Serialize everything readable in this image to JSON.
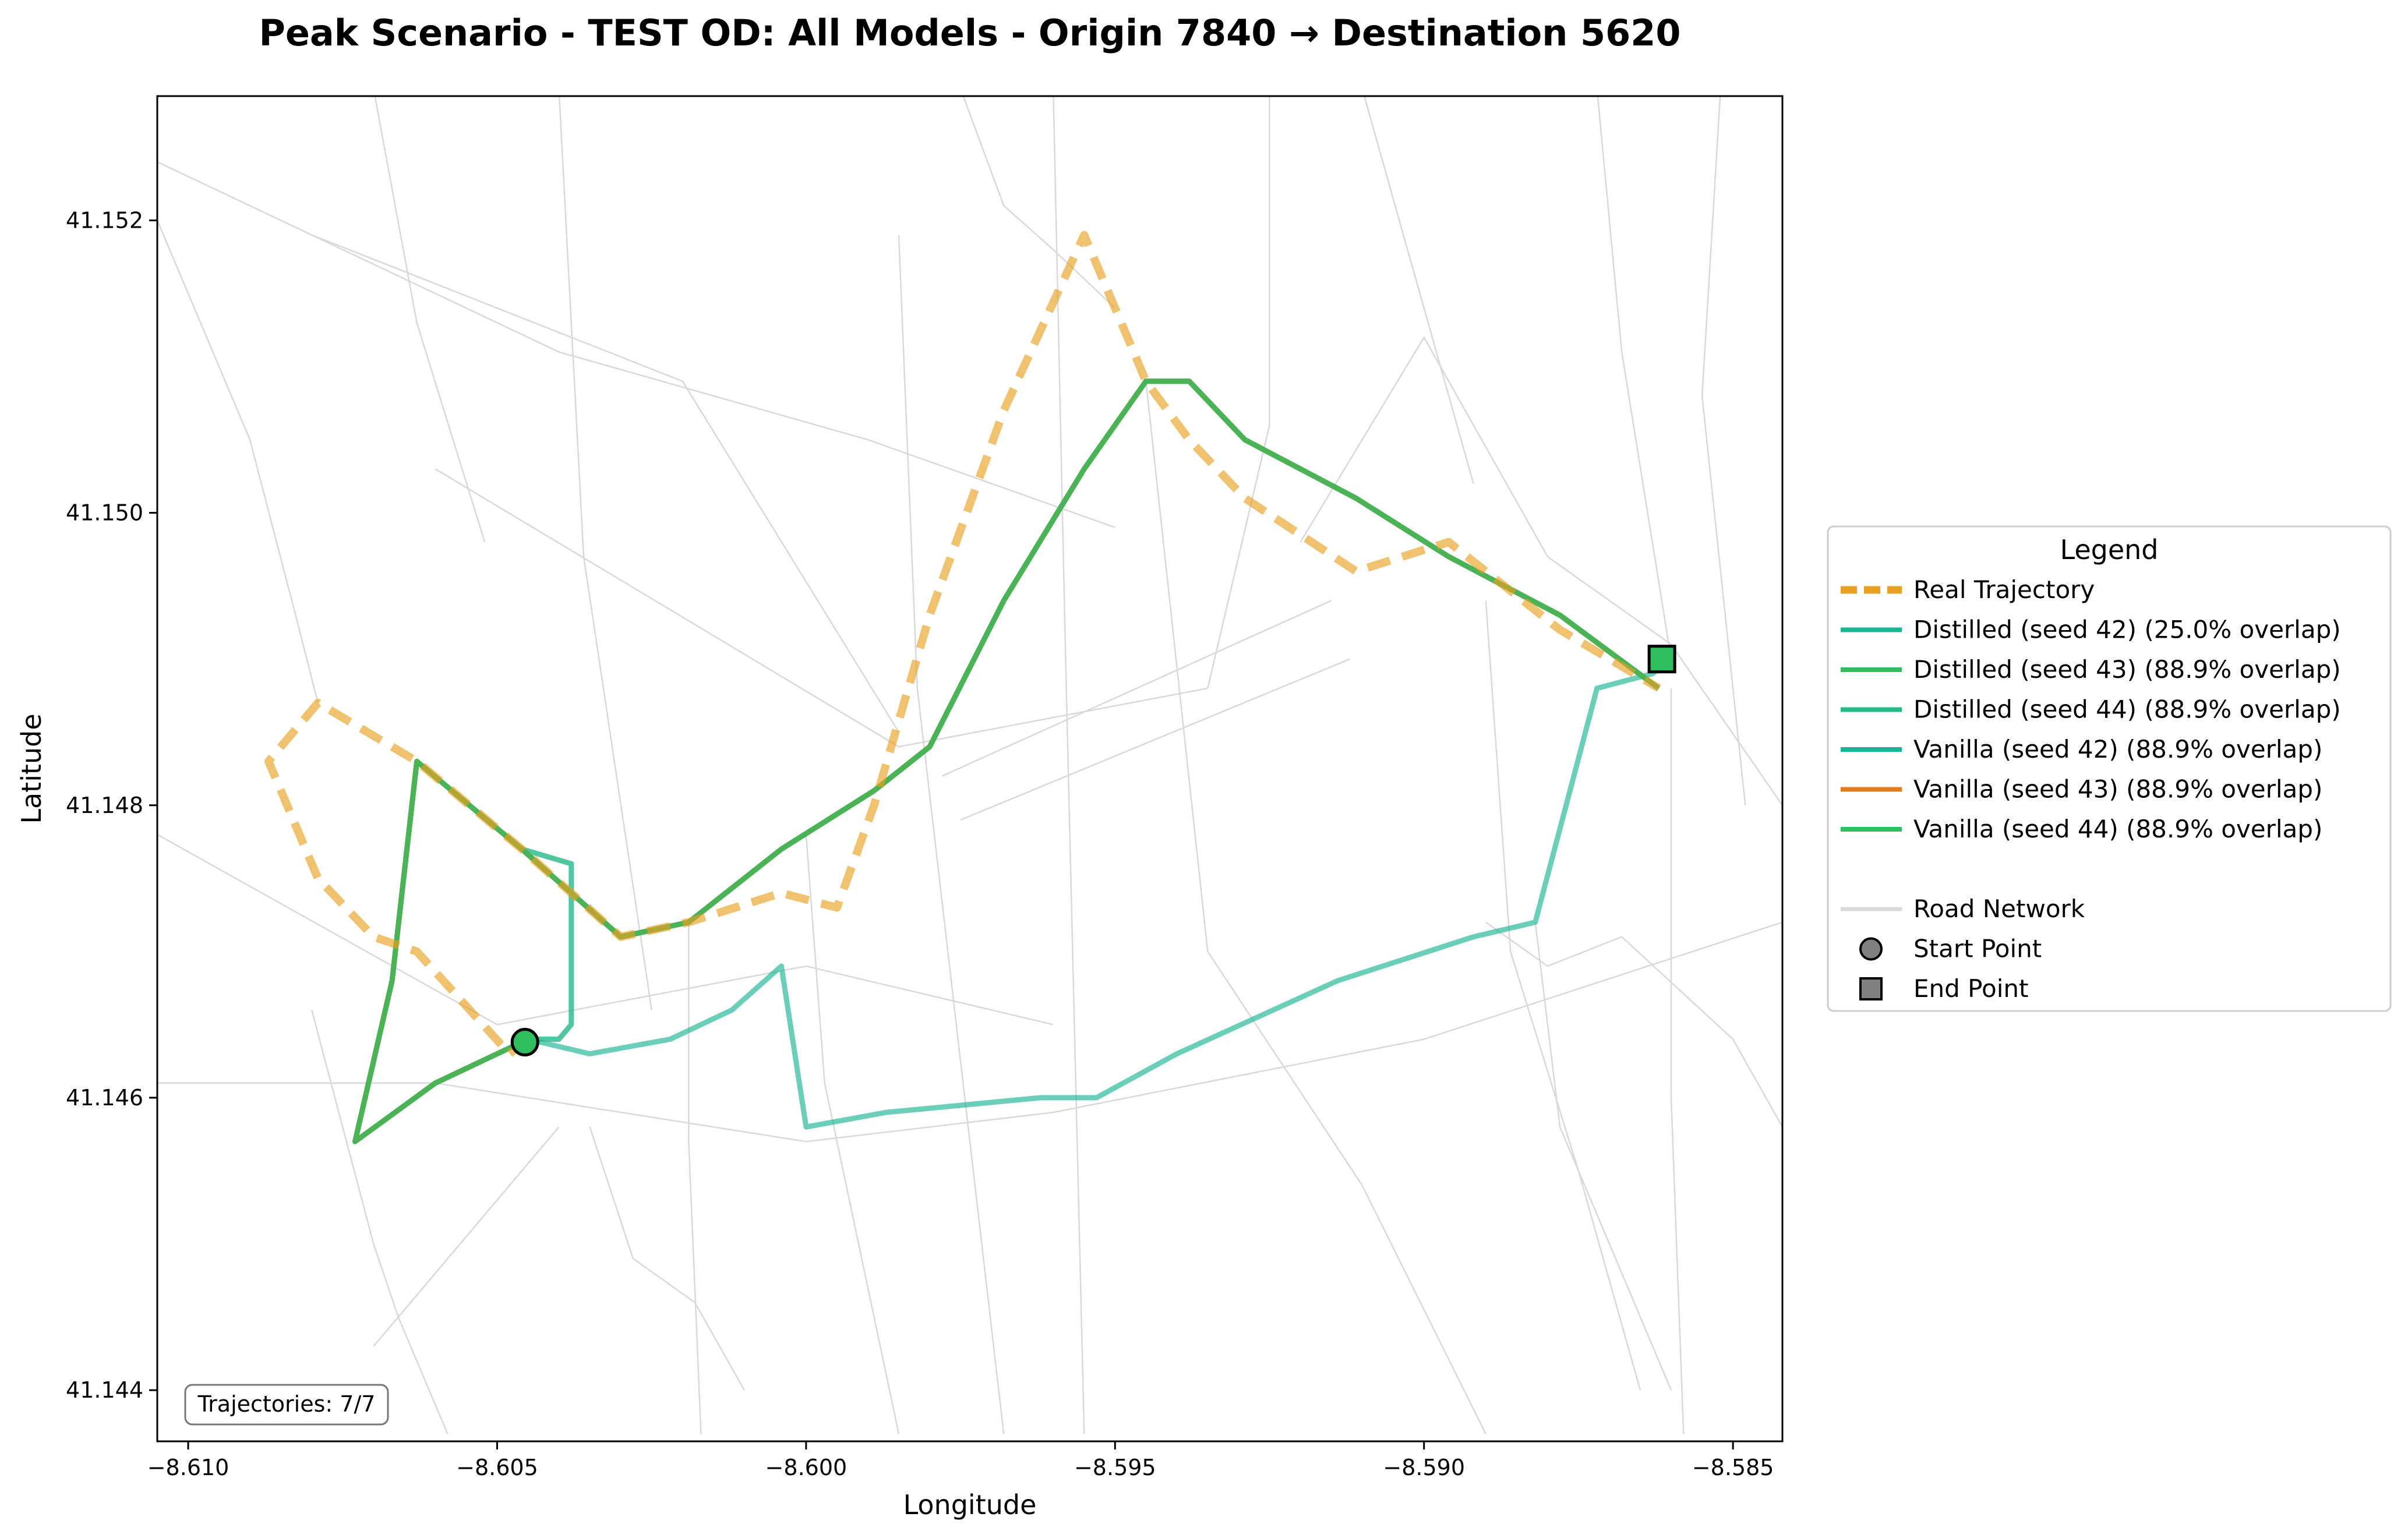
{
  "chart_data": {
    "type": "line",
    "title": "Peak Scenario - TEST OD: All Models - Origin 7840 → Destination 5620",
    "xlabel": "Longitude",
    "ylabel": "Latitude",
    "xlim": [
      -8.6105,
      -8.5842
    ],
    "ylim": [
      41.14365,
      41.15285
    ],
    "xticks": [
      -8.61,
      -8.605,
      -8.6,
      -8.595,
      -8.59,
      -8.585
    ],
    "xtick_labels": [
      "−8.610",
      "−8.605",
      "−8.600",
      "−8.595",
      "−8.590",
      "−8.585"
    ],
    "yticks": [
      41.144,
      41.146,
      41.148,
      41.15,
      41.152
    ],
    "ytick_labels": [
      "41.144",
      "41.146",
      "41.148",
      "41.150",
      "41.152"
    ],
    "grid": false,
    "legend_placement": "outside-right",
    "legend_title": "Legend",
    "annotation": "Trajectories: 7/7",
    "colors": {
      "real": "#E8A020",
      "teal": "#1AB393",
      "green": "#2EBE5E",
      "orange": "#E07B20",
      "road": "#d9d9d9",
      "olive": "#B7A33A"
    },
    "series": [
      {
        "name": "Real Trajectory",
        "style": "dashed",
        "color": "#E8A020",
        "x": [
          -8.6045,
          -8.6048,
          -8.6063,
          -8.607,
          -8.6079,
          -8.6087,
          -8.6079,
          -8.6063,
          -8.6046,
          -8.603,
          -8.6019,
          -8.6004,
          -8.5995,
          -8.5989,
          -8.598,
          -8.5968,
          -8.5955,
          -8.5945,
          -8.5938,
          -8.5929,
          -8.5911,
          -8.5896,
          -8.5878,
          -8.5862
        ],
        "y": [
          41.1464,
          41.1463,
          41.147,
          41.1471,
          41.1475,
          41.1483,
          41.1487,
          41.1483,
          41.1477,
          41.1471,
          41.1472,
          41.1474,
          41.1473,
          41.148,
          41.1493,
          41.1507,
          41.1519,
          41.1509,
          41.1505,
          41.1501,
          41.1496,
          41.1498,
          41.1492,
          41.1488
        ]
      },
      {
        "name": "Distilled (seed 42) (25.0% overlap)",
        "style": "solid",
        "color": "#1AB393",
        "x": [
          -8.6045,
          -8.6035,
          -8.6022,
          -8.6012,
          -8.6004,
          -8.6,
          -8.5987,
          -8.5962,
          -8.5953,
          -8.594,
          -8.5914,
          -8.5892,
          -8.5882,
          -8.5872,
          -8.5863,
          -8.586
        ],
        "y": [
          41.1464,
          41.1463,
          41.1464,
          41.1466,
          41.1469,
          41.1458,
          41.1459,
          41.146,
          41.146,
          41.1463,
          41.1468,
          41.1471,
          41.1472,
          41.1488,
          41.1489,
          41.149
        ]
      },
      {
        "name": "Distilled (seed 43) (88.9% overlap)",
        "style": "solid",
        "color": "#2EBE5E",
        "x": [
          -8.6045,
          -8.606,
          -8.6073,
          -8.6067,
          -8.6063,
          -8.6046,
          -8.603,
          -8.6019,
          -8.6004,
          -8.5989,
          -8.598,
          -8.5968,
          -8.5955,
          -8.5945,
          -8.5938,
          -8.5929,
          -8.5911,
          -8.5896,
          -8.5878,
          -8.5862
        ],
        "y": [
          41.1464,
          41.1461,
          41.1457,
          41.1468,
          41.1483,
          41.1477,
          41.1471,
          41.1472,
          41.1477,
          41.1481,
          41.1484,
          41.1494,
          41.1503,
          41.1509,
          41.1509,
          41.1505,
          41.1501,
          41.1497,
          41.1493,
          41.1488
        ]
      },
      {
        "name": "Distilled (seed 44) (88.9% overlap)",
        "style": "solid",
        "color": "#26B888",
        "x": [
          -8.6045,
          -8.604,
          -8.6038,
          -8.6038,
          -8.6046,
          -8.603,
          -8.6019,
          -8.6004,
          -8.5989,
          -8.598,
          -8.5968,
          -8.5955,
          -8.5945,
          -8.5938,
          -8.5929,
          -8.5911,
          -8.5896,
          -8.5878,
          -8.5862
        ],
        "y": [
          41.1464,
          41.1464,
          41.1465,
          41.1476,
          41.1477,
          41.1471,
          41.1472,
          41.1477,
          41.1481,
          41.1484,
          41.1494,
          41.1503,
          41.1509,
          41.1509,
          41.1505,
          41.1501,
          41.1497,
          41.1493,
          41.1488
        ]
      },
      {
        "name": "Vanilla (seed 42) (88.9% overlap)",
        "style": "solid",
        "color": "#1AB393",
        "x": [
          -8.6045,
          -8.606,
          -8.6073,
          -8.6067,
          -8.6063,
          -8.6046,
          -8.603,
          -8.6019,
          -8.6004,
          -8.5989,
          -8.598,
          -8.5968,
          -8.5955,
          -8.5945,
          -8.5938,
          -8.5929,
          -8.5911,
          -8.5896,
          -8.5878,
          -8.5862
        ],
        "y": [
          41.1464,
          41.1461,
          41.1457,
          41.1468,
          41.1483,
          41.1477,
          41.1471,
          41.1472,
          41.1477,
          41.1481,
          41.1484,
          41.1494,
          41.1503,
          41.1509,
          41.1509,
          41.1505,
          41.1501,
          41.1497,
          41.1493,
          41.1488
        ]
      },
      {
        "name": "Vanilla (seed 43) (88.9% overlap)",
        "style": "solid",
        "color": "#E07B20",
        "x": [
          -8.6045,
          -8.606,
          -8.6073,
          -8.6067,
          -8.6063,
          -8.6046,
          -8.603,
          -8.6019,
          -8.6004,
          -8.5989,
          -8.598,
          -8.5968,
          -8.5955,
          -8.5945,
          -8.5938,
          -8.5929,
          -8.5911,
          -8.5896,
          -8.5878,
          -8.5862
        ],
        "y": [
          41.1464,
          41.1461,
          41.1457,
          41.1468,
          41.1483,
          41.1477,
          41.1471,
          41.1472,
          41.1477,
          41.1481,
          41.1484,
          41.1494,
          41.1503,
          41.1509,
          41.1509,
          41.1505,
          41.1501,
          41.1497,
          41.1493,
          41.1488
        ]
      },
      {
        "name": "Vanilla (seed 44) (88.9% overlap)",
        "style": "solid",
        "color": "#2EBE5E",
        "x": [
          -8.6045,
          -8.606,
          -8.6073,
          -8.6067,
          -8.6063,
          -8.6046,
          -8.603,
          -8.6019,
          -8.6004,
          -8.5989,
          -8.598,
          -8.5968,
          -8.5955,
          -8.5945,
          -8.5938,
          -8.5929,
          -8.5911,
          -8.5896,
          -8.5878,
          -8.5862
        ],
        "y": [
          41.1464,
          41.1461,
          41.1457,
          41.1468,
          41.1483,
          41.1477,
          41.1471,
          41.1472,
          41.1477,
          41.1481,
          41.1484,
          41.1494,
          41.1503,
          41.1509,
          41.1509,
          41.1505,
          41.1501,
          41.1497,
          41.1493,
          41.1488
        ]
      }
    ],
    "legend_extra": [
      {
        "name": "Road Network",
        "kind": "road-line"
      },
      {
        "name": "Start Point",
        "kind": "circle-marker"
      },
      {
        "name": "End Point",
        "kind": "square-marker"
      }
    ],
    "start_point": {
      "x": -8.60455,
      "y": 41.14638
    },
    "end_point": {
      "x": -8.58615,
      "y": 41.149
    },
    "road_network": [
      {
        "x": [
          -8.6105,
          -8.606,
          -8.6,
          -8.596,
          -8.59,
          -8.5842
        ],
        "y": [
          41.1461,
          41.1461,
          41.1457,
          41.1459,
          41.1464,
          41.1472
        ]
      },
      {
        "x": [
          -8.6105,
          -8.605,
          -8.6,
          -8.596
        ],
        "y": [
          41.1478,
          41.1465,
          41.1469,
          41.1465
        ]
      },
      {
        "x": [
          -8.608,
          -8.602,
          -8.5985
        ],
        "y": [
          41.1519,
          41.1509,
          41.1485
        ]
      },
      {
        "x": [
          -8.6105,
          -8.604,
          -8.599,
          -8.595
        ],
        "y": [
          41.1524,
          41.1511,
          41.1505,
          41.1499
        ]
      },
      {
        "x": [
          -8.606,
          -8.5985,
          -8.5935
        ],
        "y": [
          41.1503,
          41.1484,
          41.1488
        ]
      },
      {
        "x": [
          -8.5978,
          -8.5915
        ],
        "y": [
          41.1482,
          41.1494
        ]
      },
      {
        "x": [
          -8.5975,
          -8.5912
        ],
        "y": [
          41.1479,
          41.149
        ]
      },
      {
        "x": [
          -8.607,
          -8.6063,
          -8.6052
        ],
        "y": [
          41.1529,
          41.1513,
          41.1498
        ]
      },
      {
        "x": [
          -8.604,
          -8.6036,
          -8.6025
        ],
        "y": [
          41.1529,
          41.1497,
          41.1466
        ]
      },
      {
        "x": [
          -8.6019,
          -8.6019,
          -8.6017
        ],
        "y": [
          41.1472,
          41.1457,
          41.1437
        ]
      },
      {
        "x": [
          -8.6,
          -8.5997,
          -8.5985
        ],
        "y": [
          41.1478,
          41.1461,
          41.1437
        ]
      },
      {
        "x": [
          -8.5985,
          -8.5982,
          -8.5968
        ],
        "y": [
          41.1519,
          41.1488,
          41.1437
        ]
      },
      {
        "x": [
          -8.596,
          -8.5958,
          -8.5955
        ],
        "y": [
          41.1529,
          41.149,
          41.1437
        ]
      },
      {
        "x": [
          -8.5945,
          -8.5935,
          -8.591,
          -8.589
        ],
        "y": [
          41.1509,
          41.147,
          41.1454,
          41.1437
        ]
      },
      {
        "x": [
          -8.591,
          -8.5902,
          -8.5892
        ],
        "y": [
          41.1529,
          41.1517,
          41.1502
        ]
      },
      {
        "x": [
          -8.589,
          -8.5886,
          -8.5875,
          -8.5865
        ],
        "y": [
          41.1494,
          41.147,
          41.1455,
          41.144
        ]
      },
      {
        "x": [
          -8.5872,
          -8.5868,
          -8.586
        ],
        "y": [
          41.1529,
          41.1511,
          41.149
        ]
      },
      {
        "x": [
          -8.586,
          -8.586,
          -8.5858
        ],
        "y": [
          41.1488,
          41.146,
          41.1437
        ]
      },
      {
        "x": [
          -8.5852,
          -8.5855,
          -8.5848
        ],
        "y": [
          41.1529,
          41.1508,
          41.148
        ]
      },
      {
        "x": [
          -8.592,
          -8.59,
          -8.588,
          -8.586,
          -8.5842
        ],
        "y": [
          41.1498,
          41.1512,
          41.1497,
          41.1491,
          41.148
        ]
      },
      {
        "x": [
          -8.589,
          -8.588,
          -8.5868,
          -8.585,
          -8.5842
        ],
        "y": [
          41.1472,
          41.1469,
          41.1471,
          41.1464,
          41.1458
        ]
      },
      {
        "x": [
          -8.5882,
          -8.5878,
          -8.587,
          -8.586
        ],
        "y": [
          41.1472,
          41.1458,
          41.145,
          41.144
        ]
      },
      {
        "x": [
          -8.608,
          -8.607,
          -8.6066,
          -8.6058
        ],
        "y": [
          41.1466,
          41.145,
          41.1445,
          41.1437
        ]
      },
      {
        "x": [
          -8.6105,
          -8.609,
          -8.6082,
          -8.6079
        ],
        "y": [
          41.152,
          41.1505,
          41.1492,
          41.1487
        ]
      },
      {
        "x": [
          -8.607,
          -8.605,
          -8.604
        ],
        "y": [
          41.1443,
          41.1453,
          41.1458
        ]
      },
      {
        "x": [
          -8.6035,
          -8.6028,
          -8.6018,
          -8.601
        ],
        "y": [
          41.1458,
          41.1449,
          41.1446,
          41.144
        ]
      },
      {
        "x": [
          -8.5975,
          -8.5968,
          -8.596,
          -8.595
        ],
        "y": [
          41.1529,
          41.1521,
          41.1518,
          41.1514
        ]
      },
      {
        "x": [
          -8.5925,
          -8.5925,
          -8.5935
        ],
        "y": [
          41.1529,
          41.1506,
          41.1488
        ]
      }
    ]
  }
}
